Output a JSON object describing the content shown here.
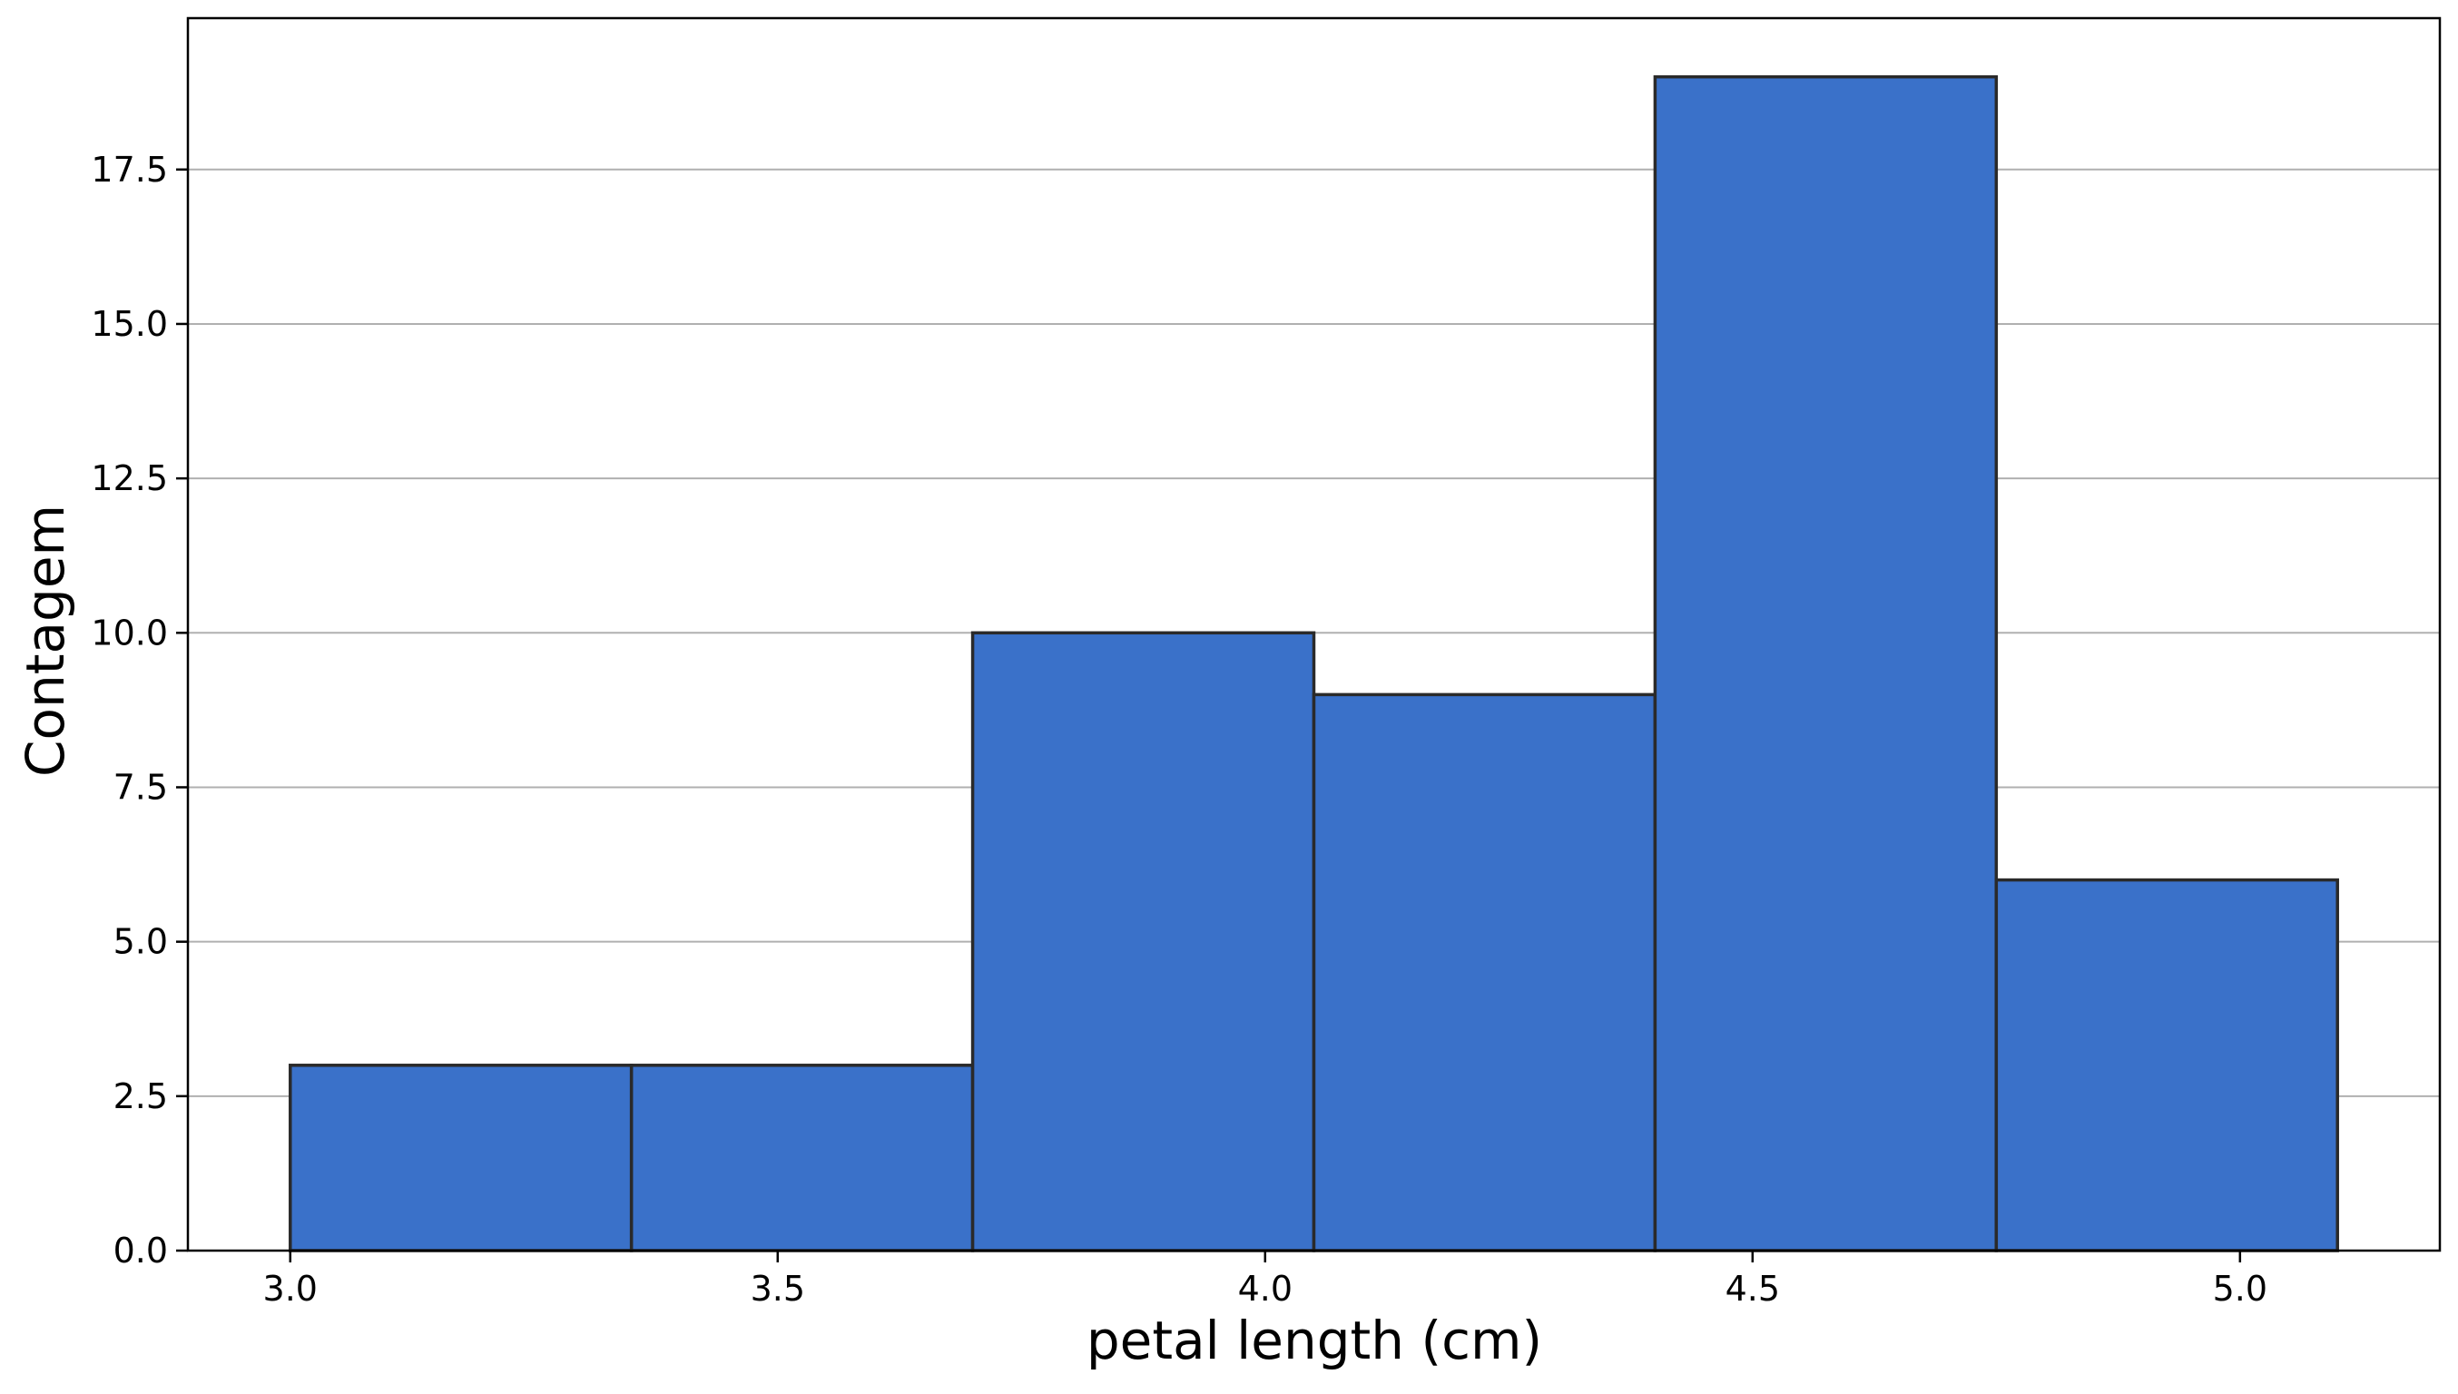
{
  "chart_data": {
    "type": "bar",
    "title": "",
    "xlabel": "petal length (cm)",
    "ylabel": "Contagem",
    "bins": [
      {
        "x0": 3.0,
        "x1": 3.35,
        "count": 3
      },
      {
        "x0": 3.35,
        "x1": 3.7,
        "count": 3
      },
      {
        "x0": 3.7,
        "x1": 4.05,
        "count": 10
      },
      {
        "x0": 4.05,
        "x1": 4.4,
        "count": 9
      },
      {
        "x0": 4.4,
        "x1": 4.75,
        "count": 19
      },
      {
        "x0": 4.75,
        "x1": 5.1,
        "count": 6
      }
    ],
    "xlim": [
      2.895,
      5.205
    ],
    "ylim": [
      0,
      19.95
    ],
    "xticks": [
      3.0,
      3.5,
      4.0,
      4.5,
      5.0
    ],
    "xtick_labels": [
      "3.0",
      "3.5",
      "4.0",
      "4.5",
      "5.0"
    ],
    "yticks": [
      0,
      2.5,
      5,
      7.5,
      10,
      12.5,
      15,
      17.5
    ],
    "ytick_labels": [
      "0.0",
      "2.5",
      "5.0",
      "7.5",
      "10.0",
      "12.5",
      "15.0",
      "17.5"
    ],
    "grid": "y",
    "legend": "none",
    "colors": {
      "bar_fill": "#3a71c9",
      "bar_edge": "#2a2a2a",
      "grid": "#b0b0b0",
      "axis": "#000000"
    }
  }
}
